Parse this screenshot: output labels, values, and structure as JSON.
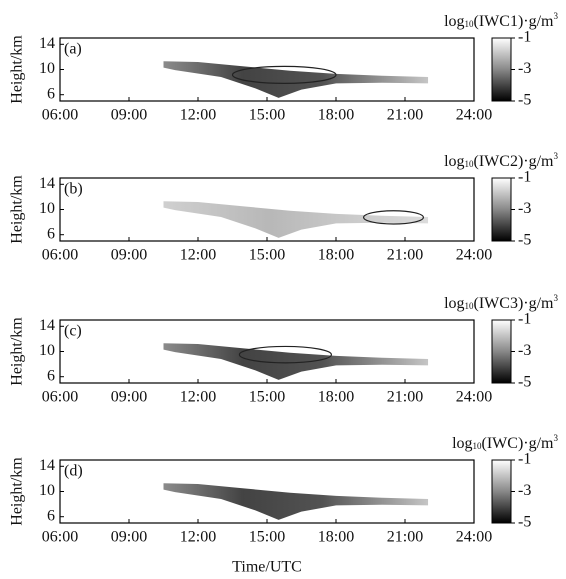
{
  "chart_data": [
    {
      "type": "heatmap",
      "panel_label": "(a)",
      "ylabel": "Height/km",
      "colorbar_label": {
        "base": "log",
        "sub": "10",
        "quantity": "(IWC1)·g/m",
        "sup": "3"
      },
      "xlim": [
        6,
        24
      ],
      "xticks": [
        {
          "value": 6,
          "label": "06:00"
        },
        {
          "value": 9,
          "label": "09:00"
        },
        {
          "value": 12,
          "label": "12:00"
        },
        {
          "value": 15,
          "label": "15:00"
        },
        {
          "value": 18,
          "label": "18:00"
        },
        {
          "value": 21,
          "label": "21:00"
        },
        {
          "value": 24,
          "label": "24:00"
        }
      ],
      "ylim": [
        5,
        15
      ],
      "yticks": [
        6,
        10,
        14
      ],
      "clim": [
        -5,
        -1
      ],
      "cticks": [
        -1,
        -3,
        -5
      ],
      "annotation_ellipse": {
        "x": [
          13.5,
          18
        ],
        "y": [
          7.8,
          10.5
        ]
      }
    },
    {
      "type": "heatmap",
      "panel_label": "(b)",
      "ylabel": "Height/km",
      "colorbar_label": {
        "base": "log",
        "sub": "10",
        "quantity": "(IWC2)·g/m",
        "sup": "3"
      },
      "xlim": [
        6,
        24
      ],
      "xticks": [
        {
          "value": 6,
          "label": "06:00"
        },
        {
          "value": 9,
          "label": "09:00"
        },
        {
          "value": 12,
          "label": "12:00"
        },
        {
          "value": 15,
          "label": "15:00"
        },
        {
          "value": 18,
          "label": "18:00"
        },
        {
          "value": 21,
          "label": "21:00"
        },
        {
          "value": 24,
          "label": "24:00"
        }
      ],
      "ylim": [
        5,
        15
      ],
      "yticks": [
        6,
        10,
        14
      ],
      "clim": [
        -5,
        -1
      ],
      "cticks": [
        -1,
        -3,
        -5
      ],
      "annotation_ellipse": {
        "x": [
          19.2,
          21.8
        ],
        "y": [
          7.7,
          9.8
        ]
      }
    },
    {
      "type": "heatmap",
      "panel_label": "(c)",
      "ylabel": "Height/km",
      "colorbar_label": {
        "base": "log",
        "sub": "10",
        "quantity": "(IWC3)·g/m",
        "sup": "3"
      },
      "xlim": [
        6,
        24
      ],
      "xticks": [
        {
          "value": 6,
          "label": "06:00"
        },
        {
          "value": 9,
          "label": "09:00"
        },
        {
          "value": 12,
          "label": "12:00"
        },
        {
          "value": 15,
          "label": "15:00"
        },
        {
          "value": 18,
          "label": "18:00"
        },
        {
          "value": 21,
          "label": "21:00"
        },
        {
          "value": 24,
          "label": "24:00"
        }
      ],
      "ylim": [
        5,
        15
      ],
      "yticks": [
        6,
        10,
        14
      ],
      "clim": [
        -5,
        -1
      ],
      "cticks": [
        -1,
        -3,
        -5
      ],
      "annotation_ellipse": {
        "x": [
          13.8,
          17.8
        ],
        "y": [
          8.2,
          10.8
        ]
      }
    },
    {
      "type": "heatmap",
      "panel_label": "(d)",
      "ylabel": "Height/km",
      "xlabel": "Time/UTC",
      "colorbar_label": {
        "base": "log",
        "sub": "10",
        "quantity": "(IWC)·g/m",
        "sup": "3"
      },
      "xlim": [
        6,
        24
      ],
      "xticks": [
        {
          "value": 6,
          "label": "06:00"
        },
        {
          "value": 9,
          "label": "09:00"
        },
        {
          "value": 12,
          "label": "12:00"
        },
        {
          "value": 15,
          "label": "15:00"
        },
        {
          "value": 18,
          "label": "18:00"
        },
        {
          "value": 21,
          "label": "21:00"
        },
        {
          "value": 24,
          "label": "24:00"
        }
      ],
      "ylim": [
        5,
        15
      ],
      "yticks": [
        6,
        10,
        14
      ],
      "clim": [
        -5,
        -1
      ],
      "cticks": [
        -1,
        -3,
        -5
      ]
    }
  ]
}
